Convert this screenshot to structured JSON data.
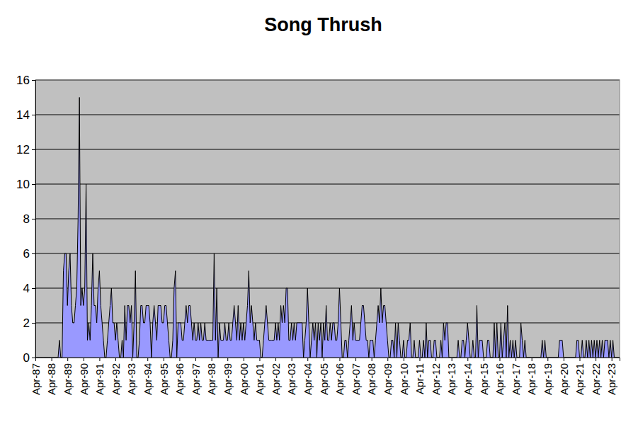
{
  "chart_data": {
    "type": "area",
    "title": "Song Thrush",
    "categories": [
      "Apr-87",
      null,
      null,
      null,
      null,
      null,
      null,
      null,
      null,
      null,
      null,
      null,
      "Apr-88",
      null,
      null,
      null,
      null,
      null,
      null,
      null,
      null,
      null,
      null,
      null,
      "Apr-89",
      null,
      null,
      null,
      null,
      null,
      null,
      null,
      null,
      null,
      null,
      null,
      "Apr-90",
      null,
      null,
      null,
      null,
      null,
      null,
      null,
      null,
      null,
      null,
      null,
      "Apr-91",
      null,
      null,
      null,
      null,
      null,
      null,
      null,
      null,
      null,
      null,
      null,
      "Apr-92",
      null,
      null,
      null,
      null,
      null,
      null,
      null,
      null,
      null,
      null,
      null,
      "Apr-93",
      null,
      null,
      null,
      null,
      null,
      null,
      null,
      null,
      null,
      null,
      null,
      "Apr-94",
      null,
      null,
      null,
      null,
      null,
      null,
      null,
      null,
      null,
      null,
      null,
      "Apr-95",
      null,
      null,
      null,
      null,
      null,
      null,
      null,
      null,
      null,
      null,
      null,
      "Apr-96",
      null,
      null,
      null,
      null,
      null,
      null,
      null,
      null,
      null,
      null,
      null,
      "Apr-97",
      null,
      null,
      null,
      null,
      null,
      null,
      null,
      null,
      null,
      null,
      null,
      "Apr-98",
      null,
      null,
      null,
      null,
      null,
      null,
      null,
      null,
      null,
      null,
      null,
      "Apr-99",
      null,
      null,
      null,
      null,
      null,
      null,
      null,
      null,
      null,
      null,
      null,
      "Apr-00",
      null,
      null,
      null,
      null,
      null,
      null,
      null,
      null,
      null,
      null,
      null,
      "Apr-01",
      null,
      null,
      null,
      null,
      null,
      null,
      null,
      null,
      null,
      null,
      null,
      "Apr-02",
      null,
      null,
      null,
      null,
      null,
      null,
      null,
      null,
      null,
      null,
      null,
      "Apr-03",
      null,
      null,
      null,
      null,
      null,
      null,
      null,
      null,
      null,
      null,
      null,
      "Apr-04",
      null,
      null,
      null,
      null,
      null,
      null,
      null,
      null,
      null,
      null,
      null,
      "Apr-05",
      null,
      null,
      null,
      null,
      null,
      null,
      null,
      null,
      null,
      null,
      null,
      "Apr-06",
      null,
      null,
      null,
      null,
      null,
      null,
      null,
      null,
      null,
      null,
      null,
      "Apr-07",
      null,
      null,
      null,
      null,
      null,
      null,
      null,
      null,
      null,
      null,
      null,
      "Apr-08",
      null,
      null,
      null,
      null,
      null,
      null,
      null,
      null,
      null,
      null,
      null,
      "Apr-09",
      null,
      null,
      null,
      null,
      null,
      null,
      null,
      null,
      null,
      null,
      null,
      "Apr-10",
      null,
      null,
      null,
      null,
      null,
      null,
      null,
      null,
      null,
      null,
      null,
      "Apr-11",
      null,
      null,
      null,
      null,
      null,
      null,
      null,
      null,
      null,
      null,
      null,
      "Apr-12",
      null,
      null,
      null,
      null,
      null,
      null,
      null,
      null,
      null,
      null,
      null,
      "Apr-13",
      null,
      null,
      null,
      null,
      null,
      null,
      null,
      null,
      null,
      null,
      null,
      "Apr-14",
      null,
      null,
      null,
      null,
      null,
      null,
      null,
      null,
      null,
      null,
      null,
      "Apr-15",
      null,
      null,
      null,
      null,
      null,
      null,
      null,
      null,
      null,
      null,
      null,
      "Apr-16",
      null,
      null,
      null,
      null,
      null,
      null,
      null,
      null,
      null,
      null,
      null,
      "Apr-17",
      null,
      null,
      null,
      null,
      null,
      null,
      null,
      null,
      null,
      null,
      null,
      "Apr-18",
      null,
      null,
      null,
      null,
      null,
      null,
      null,
      null,
      null,
      null,
      null,
      "Apr-19",
      null,
      null,
      null,
      null,
      null,
      null,
      null,
      null,
      null,
      null,
      null,
      "Apr-20",
      null,
      null,
      null,
      null,
      null,
      null,
      null,
      null,
      null,
      null,
      null,
      "Apr-21",
      null,
      null,
      null,
      null,
      null,
      null,
      null,
      null,
      null,
      null,
      null,
      "Apr-22",
      null,
      null,
      null,
      null,
      null,
      null,
      null,
      null,
      null,
      null,
      null,
      "Apr-23",
      null,
      null,
      null,
      null,
      null,
      null
    ],
    "values": [
      0,
      0,
      0,
      0,
      0,
      0,
      0,
      0,
      0,
      0,
      0,
      0,
      0,
      0,
      0,
      0,
      0,
      0,
      1,
      0,
      0,
      5,
      6,
      6,
      3,
      5,
      6,
      3,
      2,
      2,
      3,
      4,
      8,
      15,
      3,
      4,
      3,
      4,
      10,
      1,
      2,
      1,
      3,
      6,
      3,
      3,
      2,
      4,
      5,
      3,
      2,
      1,
      0,
      0,
      1,
      2,
      3,
      4,
      2,
      2,
      1,
      2,
      1,
      0,
      0,
      1,
      0,
      3,
      1,
      3,
      3,
      2,
      3,
      0,
      2,
      5,
      0,
      0,
      1,
      3,
      3,
      2,
      2,
      3,
      3,
      3,
      2,
      0,
      2,
      3,
      2,
      1,
      3,
      3,
      3,
      2,
      2,
      3,
      3,
      2,
      1,
      0,
      0,
      1,
      4,
      5,
      0,
      2,
      2,
      2,
      1,
      1,
      2,
      3,
      2,
      3,
      3,
      2,
      1,
      2,
      1,
      1,
      2,
      1,
      2,
      1,
      1,
      2,
      1,
      1,
      1,
      1,
      1,
      1,
      6,
      1,
      4,
      0,
      2,
      1,
      1,
      1,
      2,
      1,
      1,
      2,
      1,
      1,
      2,
      3,
      2,
      1,
      3,
      1,
      2,
      1,
      2,
      1,
      2,
      3,
      5,
      2,
      3,
      2,
      1,
      2,
      1,
      1,
      1,
      0,
      0,
      1,
      2,
      3,
      2,
      1,
      1,
      1,
      1,
      1,
      2,
      1,
      2,
      1,
      3,
      2,
      3,
      2,
      4,
      4,
      1,
      1,
      2,
      1,
      2,
      1,
      2,
      2,
      2,
      2,
      2,
      0,
      1,
      2,
      4,
      2,
      0,
      1,
      2,
      1,
      2,
      0,
      2,
      1,
      2,
      0,
      2,
      1,
      3,
      1,
      1,
      2,
      1,
      2,
      2,
      1,
      1,
      2,
      4,
      2,
      0,
      0,
      1,
      1,
      0,
      1,
      2,
      3,
      1,
      2,
      1,
      1,
      1,
      1,
      2,
      3,
      3,
      2,
      1,
      1,
      0,
      1,
      1,
      1,
      0,
      1,
      2,
      3,
      2,
      4,
      2,
      3,
      3,
      2,
      1,
      0,
      0,
      1,
      1,
      0,
      2,
      0,
      2,
      1,
      0,
      0,
      1,
      0,
      0,
      1,
      1,
      2,
      0,
      0,
      1,
      0,
      0,
      0,
      1,
      0,
      0,
      1,
      0,
      2,
      0,
      1,
      1,
      0,
      0,
      1,
      1,
      0,
      0,
      0,
      1,
      0,
      2,
      1,
      2,
      2,
      0,
      0,
      0,
      0,
      0,
      0,
      0,
      1,
      0,
      0,
      1,
      1,
      0,
      1,
      2,
      1,
      0,
      0,
      1,
      0,
      0,
      3,
      0,
      1,
      1,
      1,
      0,
      0,
      0,
      1,
      1,
      0,
      0,
      0,
      2,
      0,
      2,
      0,
      0,
      2,
      0,
      1,
      2,
      0,
      3,
      0,
      1,
      0,
      1,
      0,
      1,
      0,
      0,
      0,
      2,
      1,
      0,
      1,
      0,
      0,
      0,
      0,
      0,
      0,
      0,
      0,
      0,
      0,
      0,
      0,
      1,
      0,
      1,
      0,
      0,
      0,
      0,
      0,
      0,
      0,
      0,
      0,
      0,
      1,
      1,
      1,
      0,
      0,
      0,
      0,
      0,
      0,
      0,
      0,
      0,
      0,
      1,
      1,
      0,
      0,
      1,
      0,
      0,
      1,
      0,
      1,
      0,
      1,
      0,
      1,
      0,
      1,
      0,
      1,
      0,
      1,
      0,
      1,
      1,
      1,
      0,
      1,
      0,
      1,
      0,
      0,
      0,
      0,
      0
    ],
    "color": "#9999ff",
    "ylim": [
      0,
      16
    ],
    "yticks": [
      0,
      2,
      4,
      6,
      8,
      10,
      12,
      14,
      16
    ],
    "grid": true
  }
}
